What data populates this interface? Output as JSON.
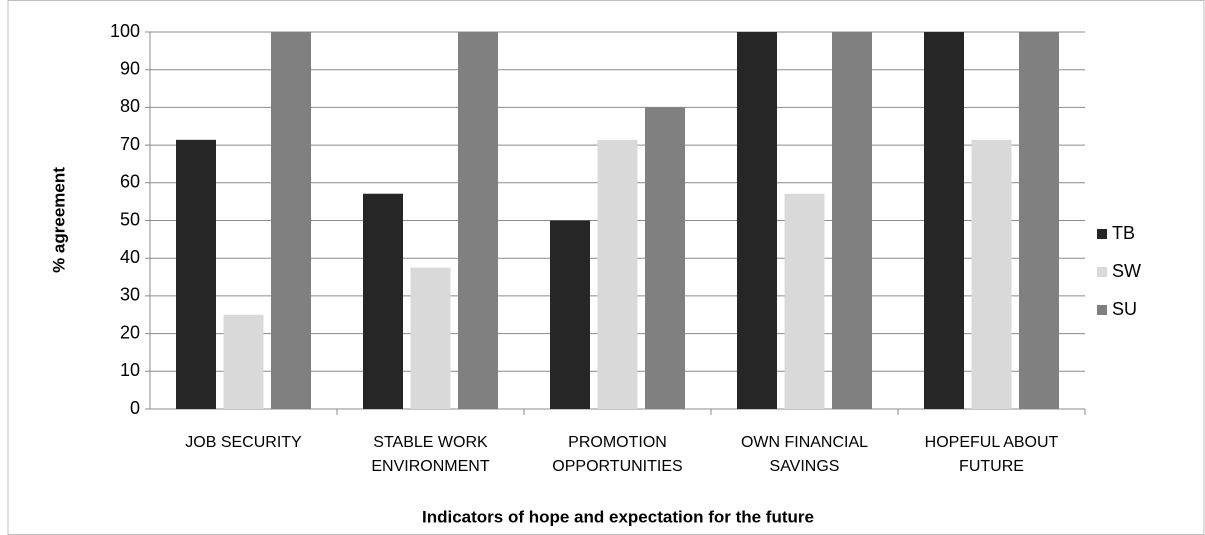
{
  "chart_data": {
    "type": "bar",
    "x_label": "Indicators of hope and expectation for the future",
    "y_label": "% agreement",
    "categories": [
      [
        "JOB SECURITY"
      ],
      [
        "STABLE WORK",
        "ENVIRONMENT"
      ],
      [
        "PROMOTION",
        "OPPORTUNITIES"
      ],
      [
        "OWN FINANCIAL",
        "SAVINGS"
      ],
      [
        "HOPEFUL ABOUT",
        "FUTURE"
      ]
    ],
    "series": [
      {
        "name": "TB",
        "color": "#262626",
        "values": [
          71.4,
          57.1,
          50,
          100,
          100
        ]
      },
      {
        "name": "SW",
        "color": "#d9d9d9",
        "values": [
          25,
          37.5,
          71.4,
          57.1,
          71.4
        ]
      },
      {
        "name": "SU",
        "color": "#808080",
        "values": [
          100,
          100,
          80,
          100,
          100
        ]
      }
    ],
    "ylim": [
      0,
      100
    ],
    "yticks": [
      0,
      10,
      20,
      30,
      40,
      50,
      60,
      70,
      80,
      90,
      100
    ],
    "grid": true,
    "legend": "right"
  }
}
